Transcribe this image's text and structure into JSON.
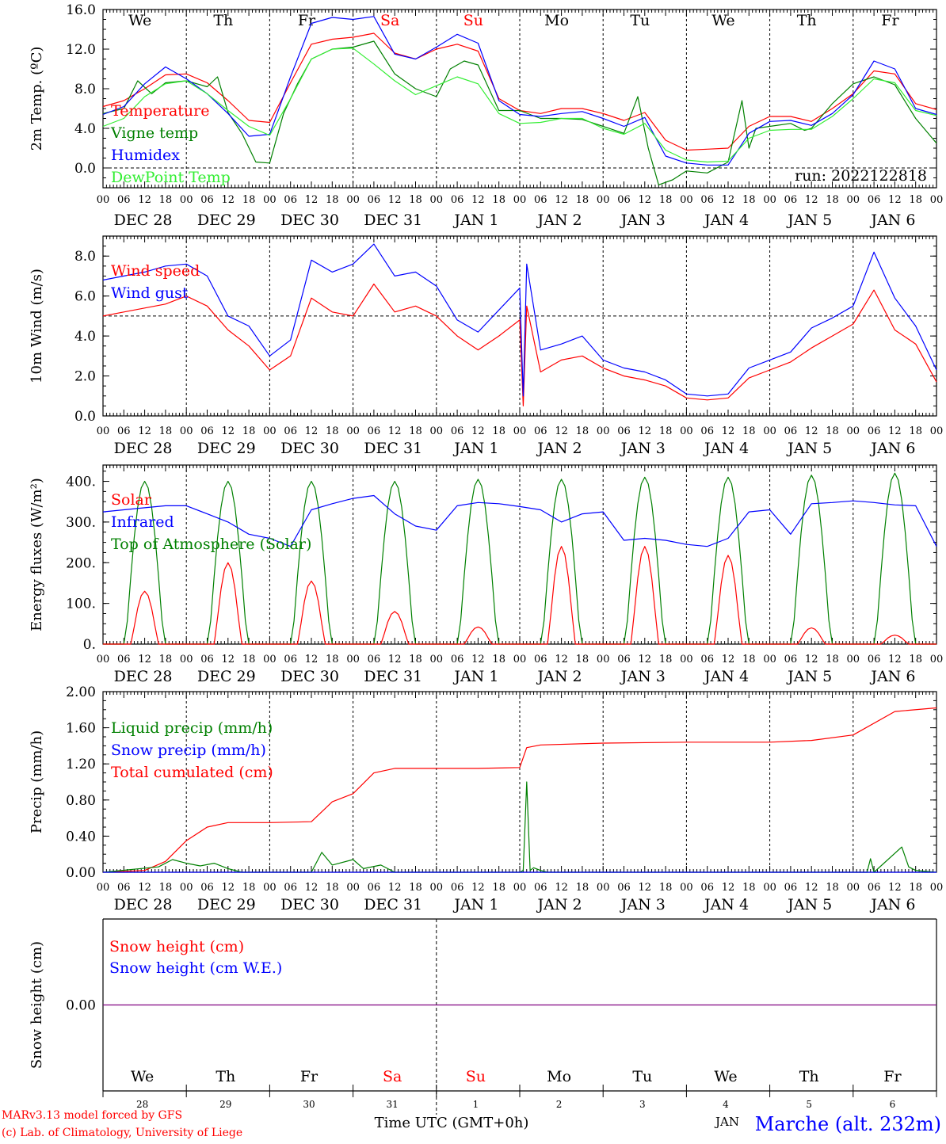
{
  "page": {
    "run_label": "run: 2022122818",
    "footer_model": "MARv3.13 model forced by GFS",
    "footer_lab": "(c) Lab. of Climatology, University of Liege",
    "footer_axis_title": "Time UTC (GMT+0h)",
    "footer_station": "Marche (alt. 232m)",
    "footer_overlap_text": "JAN"
  },
  "colors": {
    "red": "#ff0000",
    "green": "#008000",
    "blue": "#0000ff",
    "lightgreen": "#33ee33",
    "purple": "#800080",
    "grid": "#000000"
  },
  "time_axis": {
    "days": [
      {
        "weekday": "We",
        "date": "DEC 28",
        "day_num": "28",
        "weekend": false
      },
      {
        "weekday": "Th",
        "date": "DEC 29",
        "day_num": "29",
        "weekend": false
      },
      {
        "weekday": "Fr",
        "date": "DEC 30",
        "day_num": "30",
        "weekend": false
      },
      {
        "weekday": "Sa",
        "date": "DEC 31",
        "day_num": "31",
        "weekend": true
      },
      {
        "weekday": "Su",
        "date": "JAN  1",
        "day_num": "1",
        "weekend": true
      },
      {
        "weekday": "Mo",
        "date": "JAN  2",
        "day_num": "2",
        "weekend": false
      },
      {
        "weekday": "Tu",
        "date": "JAN  3",
        "day_num": "3",
        "weekend": false
      },
      {
        "weekday": "We",
        "date": "JAN  4",
        "day_num": "4",
        "weekend": false
      },
      {
        "weekday": "Th",
        "date": "JAN  5",
        "day_num": "5",
        "weekend": false
      },
      {
        "weekday": "Fr",
        "date": "JAN  6",
        "day_num": "6",
        "weekend": false
      }
    ],
    "hour_labels": [
      "00",
      "06",
      "12",
      "18"
    ],
    "final_hour_label": "00"
  },
  "chart_data": [
    {
      "type": "line",
      "ylabel": "2m Temp. (ºC)",
      "ylim": [
        -2,
        16
      ],
      "yticks": [
        0,
        4,
        8,
        12,
        16
      ],
      "ytick_labels": [
        "0.0",
        "4.0",
        "8.0",
        "12.0",
        "16.0"
      ],
      "refline": 0,
      "weekday_header": true,
      "x_unit": "hours since DEC 28 00 UTC",
      "legend": [
        {
          "label": "Temperature",
          "color": "red"
        },
        {
          "label": "Vigne temp",
          "color": "green"
        },
        {
          "label": "Humidex",
          "color": "blue"
        },
        {
          "label": "DewPoint Temp",
          "color": "lightgreen"
        }
      ],
      "series": [
        {
          "name": "Temperature",
          "color": "red",
          "x": [
            0,
            6,
            12,
            18,
            24,
            30,
            36,
            42,
            48,
            54,
            60,
            66,
            72,
            78,
            84,
            90,
            96,
            102,
            108,
            114,
            120,
            126,
            132,
            138,
            144,
            150,
            156,
            162,
            168,
            174,
            180,
            186,
            192,
            198,
            204,
            210,
            216,
            222,
            228,
            234,
            240
          ],
          "y": [
            6.2,
            6.8,
            8.0,
            9.4,
            9.5,
            8.6,
            6.8,
            4.8,
            4.6,
            8.6,
            12.5,
            13.0,
            13.2,
            13.6,
            11.6,
            11.0,
            12.0,
            12.5,
            11.8,
            7.0,
            5.8,
            5.5,
            6.0,
            6.0,
            5.5,
            4.8,
            5.6,
            2.8,
            1.8,
            1.9,
            2.0,
            4.2,
            5.2,
            5.2,
            4.7,
            6.0,
            7.5,
            9.8,
            9.5,
            6.5,
            5.9
          ]
        },
        {
          "name": "Vigne temp",
          "color": "green",
          "x": [
            0,
            6,
            10,
            14,
            18,
            24,
            30,
            33,
            36,
            40,
            44,
            48,
            52,
            56,
            60,
            66,
            72,
            78,
            84,
            90,
            96,
            100,
            104,
            108,
            114,
            120,
            126,
            132,
            138,
            144,
            150,
            154,
            157,
            160,
            164,
            168,
            174,
            180,
            184,
            186,
            188,
            192,
            198,
            202,
            204,
            210,
            216,
            222,
            228,
            234,
            240
          ],
          "y": [
            5.5,
            6.0,
            8.8,
            7.5,
            8.6,
            8.8,
            8.2,
            9.2,
            5.6,
            3.5,
            0.6,
            0.5,
            5.5,
            8.5,
            11.0,
            12.0,
            12.2,
            12.8,
            9.5,
            8.0,
            7.2,
            10.0,
            10.8,
            10.4,
            5.8,
            5.8,
            5.0,
            5.0,
            4.9,
            4.2,
            3.5,
            7.2,
            2.0,
            -1.7,
            -1.2,
            -0.3,
            -0.5,
            0.6,
            6.8,
            2.0,
            4.0,
            4.2,
            4.5,
            3.8,
            4.0,
            6.5,
            8.5,
            9.2,
            8.4,
            5.0,
            2.5
          ]
        },
        {
          "name": "Humidex",
          "color": "blue",
          "x": [
            0,
            6,
            12,
            18,
            24,
            30,
            36,
            42,
            48,
            54,
            60,
            66,
            72,
            78,
            84,
            90,
            96,
            102,
            108,
            114,
            120,
            126,
            132,
            138,
            144,
            150,
            156,
            162,
            168,
            174,
            180,
            186,
            192,
            198,
            204,
            210,
            216,
            222,
            228,
            234,
            240
          ],
          "y": [
            5.4,
            6.2,
            8.5,
            10.2,
            9.0,
            7.5,
            5.5,
            3.2,
            3.4,
            9.2,
            14.6,
            15.2,
            15.0,
            15.3,
            11.5,
            11.0,
            12.2,
            13.5,
            12.6,
            6.8,
            5.4,
            5.2,
            5.5,
            5.7,
            5.0,
            4.2,
            5.1,
            1.2,
            0.5,
            0.3,
            0.3,
            3.5,
            4.7,
            4.8,
            4.3,
            5.5,
            7.4,
            10.8,
            10.0,
            6.0,
            5.4
          ]
        },
        {
          "name": "DewPoint Temp",
          "color": "lightgreen",
          "x": [
            0,
            6,
            12,
            18,
            24,
            30,
            36,
            42,
            48,
            54,
            60,
            66,
            72,
            78,
            84,
            90,
            96,
            102,
            108,
            114,
            120,
            126,
            132,
            138,
            144,
            150,
            156,
            162,
            168,
            174,
            180,
            186,
            192,
            198,
            204,
            210,
            216,
            222,
            228,
            234,
            240
          ],
          "y": [
            4.2,
            5.0,
            7.2,
            8.5,
            8.8,
            7.5,
            5.8,
            4.2,
            3.3,
            7.0,
            11.0,
            12.0,
            12.1,
            10.5,
            8.8,
            7.4,
            8.3,
            9.2,
            8.5,
            5.5,
            4.5,
            4.6,
            5.0,
            5.0,
            4.0,
            3.4,
            4.5,
            1.8,
            0.8,
            0.6,
            0.7,
            3.0,
            3.8,
            3.9,
            3.9,
            5.2,
            7.0,
            9.0,
            8.6,
            5.8,
            5.3
          ]
        }
      ]
    },
    {
      "type": "line",
      "ylabel": "10m Wind (m/s)",
      "ylim": [
        0,
        9
      ],
      "yticks": [
        0,
        2,
        4,
        6,
        8
      ],
      "ytick_labels": [
        "0.0",
        "2.0",
        "4.0",
        "6.0",
        "8.0"
      ],
      "refline": 5,
      "x_unit": "hours since DEC 28 00 UTC",
      "legend": [
        {
          "label": "Wind speed",
          "color": "red"
        },
        {
          "label": "Wind gust",
          "color": "blue"
        }
      ],
      "series": [
        {
          "name": "Wind speed",
          "color": "red",
          "x": [
            0,
            6,
            12,
            18,
            24,
            30,
            36,
            42,
            48,
            54,
            60,
            66,
            72,
            78,
            84,
            90,
            96,
            102,
            108,
            114,
            120,
            121,
            122,
            126,
            132,
            138,
            144,
            150,
            156,
            162,
            168,
            174,
            180,
            186,
            192,
            198,
            204,
            210,
            216,
            222,
            228,
            234,
            240
          ],
          "y": [
            5.0,
            5.2,
            5.4,
            5.6,
            6.0,
            5.5,
            4.3,
            3.5,
            2.3,
            3.0,
            5.9,
            5.2,
            5.0,
            6.6,
            5.2,
            5.5,
            5.0,
            4.0,
            3.3,
            4.0,
            4.8,
            0.5,
            5.5,
            2.2,
            2.8,
            3.0,
            2.4,
            2.0,
            1.8,
            1.5,
            0.9,
            0.8,
            0.9,
            1.9,
            2.3,
            2.7,
            3.4,
            4.0,
            4.6,
            6.3,
            4.3,
            3.6,
            1.7
          ]
        },
        {
          "name": "Wind gust",
          "color": "blue",
          "x": [
            0,
            6,
            12,
            18,
            24,
            30,
            36,
            42,
            48,
            54,
            60,
            66,
            72,
            78,
            84,
            90,
            96,
            102,
            108,
            114,
            120,
            121,
            122,
            126,
            132,
            138,
            144,
            150,
            156,
            162,
            168,
            174,
            180,
            186,
            192,
            198,
            204,
            210,
            216,
            222,
            228,
            234,
            240
          ],
          "y": [
            6.8,
            7.0,
            7.2,
            7.5,
            7.6,
            7.0,
            5.0,
            4.5,
            3.0,
            3.8,
            7.8,
            7.2,
            7.6,
            8.6,
            7.0,
            7.2,
            6.5,
            4.8,
            4.2,
            5.3,
            6.4,
            1.0,
            7.6,
            3.3,
            3.6,
            4.0,
            2.8,
            2.4,
            2.2,
            1.8,
            1.1,
            1.0,
            1.1,
            2.4,
            2.8,
            3.2,
            4.4,
            4.9,
            5.5,
            8.2,
            5.9,
            4.5,
            2.3
          ]
        }
      ]
    },
    {
      "type": "line",
      "ylabel": "Energy fluxes (W/m²)",
      "ylim": [
        0,
        440
      ],
      "yticks": [
        0,
        100,
        200,
        300,
        400
      ],
      "ytick_labels": [
        "0.",
        "100.",
        "200.",
        "300.",
        "400."
      ],
      "x_unit": "hours since DEC 28 00 UTC",
      "legend": [
        {
          "label": "Solar",
          "color": "red"
        },
        {
          "label": "Infrared",
          "color": "blue"
        },
        {
          "label": "Top of Atmosphere (Solar)",
          "color": "green"
        }
      ],
      "daily_peaks": {
        "Solar": [
          130,
          200,
          155,
          80,
          42,
          240,
          240,
          218,
          40,
          22
        ],
        "Top of Atmosphere (Solar)": [
          400,
          400,
          400,
          400,
          405,
          405,
          410,
          410,
          415,
          420
        ]
      },
      "series": [
        {
          "name": "Infrared",
          "color": "blue",
          "x": [
            0,
            6,
            12,
            18,
            24,
            30,
            36,
            42,
            48,
            54,
            60,
            66,
            72,
            78,
            84,
            90,
            96,
            102,
            108,
            114,
            120,
            126,
            132,
            138,
            144,
            150,
            156,
            162,
            168,
            174,
            180,
            186,
            192,
            198,
            204,
            210,
            216,
            222,
            228,
            234,
            240
          ],
          "y": [
            325,
            330,
            335,
            340,
            340,
            320,
            300,
            270,
            260,
            240,
            330,
            345,
            358,
            365,
            320,
            290,
            280,
            340,
            348,
            345,
            338,
            330,
            300,
            320,
            325,
            255,
            260,
            255,
            245,
            240,
            260,
            325,
            330,
            270,
            345,
            348,
            352,
            348,
            342,
            340,
            240
          ]
        }
      ]
    },
    {
      "type": "line",
      "ylabel": "Precip (mm/h)",
      "ylim": [
        0,
        2
      ],
      "yticks": [
        0,
        0.4,
        0.8,
        1.2,
        1.6,
        2.0
      ],
      "ytick_labels": [
        "0.00",
        "0.40",
        "0.80",
        "1.20",
        "1.60",
        "2.00"
      ],
      "x_unit": "hours since DEC 28 00 UTC",
      "legend": [
        {
          "label": "Liquid precip (mm/h)",
          "color": "green"
        },
        {
          "label": "Snow precip (mm/h)",
          "color": "blue"
        },
        {
          "label": "Total cumulated (cm)",
          "color": "red"
        }
      ],
      "series": [
        {
          "name": "Total cumulated (cm)",
          "color": "red",
          "x": [
            0,
            12,
            18,
            24,
            30,
            36,
            48,
            60,
            66,
            72,
            78,
            84,
            96,
            108,
            120,
            122,
            126,
            144,
            168,
            192,
            204,
            216,
            228,
            240
          ],
          "y": [
            0,
            0.02,
            0.12,
            0.35,
            0.5,
            0.55,
            0.55,
            0.56,
            0.78,
            0.87,
            1.1,
            1.15,
            1.15,
            1.15,
            1.16,
            1.38,
            1.41,
            1.43,
            1.44,
            1.44,
            1.46,
            1.52,
            1.78,
            1.82
          ]
        },
        {
          "name": "Liquid precip (mm/h)",
          "color": "green",
          "x": [
            0,
            16,
            20,
            24,
            28,
            32,
            36,
            40,
            60,
            63,
            66,
            72,
            75,
            80,
            84,
            120,
            121,
            122,
            123,
            124,
            126,
            128,
            200,
            220,
            221,
            222,
            230,
            232,
            234,
            240
          ],
          "y": [
            0,
            0.06,
            0.14,
            0.1,
            0.07,
            0.1,
            0.04,
            0,
            0,
            0.22,
            0.08,
            0.14,
            0.04,
            0.08,
            0,
            0,
            0.02,
            1.0,
            0.02,
            0.05,
            0.02,
            0,
            0,
            0,
            0.15,
            0,
            0.28,
            0.06,
            0.02,
            0
          ]
        },
        {
          "name": "Snow precip (mm/h)",
          "color": "blue",
          "x": [
            0,
            240
          ],
          "y": [
            0,
            0
          ]
        }
      ]
    },
    {
      "type": "line",
      "ylabel": "Snow height (cm)",
      "ylim": [
        -1,
        1
      ],
      "yticks": [
        0
      ],
      "ytick_labels": [
        "0.00"
      ],
      "x_unit": "hours since DEC 28 00 UTC",
      "legend": [
        {
          "label": "Snow height (cm)",
          "color": "red"
        },
        {
          "label": "Snow height (cm W.E.)",
          "color": "blue"
        }
      ],
      "series": [
        {
          "name": "Snow height (cm)",
          "color": "purple",
          "x": [
            0,
            240
          ],
          "y": [
            0,
            0
          ]
        }
      ]
    }
  ]
}
